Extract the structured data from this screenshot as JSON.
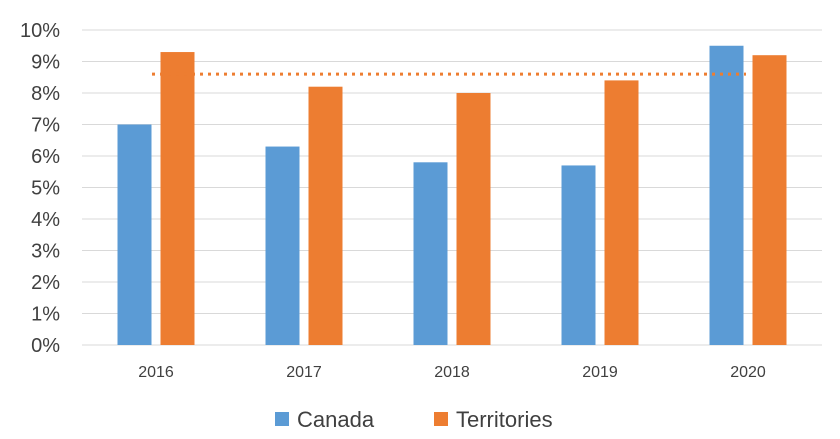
{
  "chart_data": {
    "type": "bar",
    "title": "",
    "xlabel": "",
    "ylabel": "",
    "categories": [
      "2016",
      "2017",
      "2018",
      "2019",
      "2020"
    ],
    "series": [
      {
        "name": "Canada",
        "color": "#5B9BD5",
        "values": [
          7.0,
          6.3,
          5.8,
          5.7,
          9.5
        ]
      },
      {
        "name": "Territories",
        "color": "#ED7D31",
        "values": [
          9.3,
          8.2,
          8.0,
          8.4,
          9.2
        ]
      }
    ],
    "reference_line": {
      "value": 8.6,
      "color": "#ED7D31",
      "style": "dotted"
    },
    "y_ticks": [
      "0%",
      "1%",
      "2%",
      "3%",
      "4%",
      "5%",
      "6%",
      "7%",
      "8%",
      "9%",
      "10%"
    ],
    "ylim": [
      0,
      10
    ],
    "grid": true,
    "legend_position": "bottom"
  }
}
